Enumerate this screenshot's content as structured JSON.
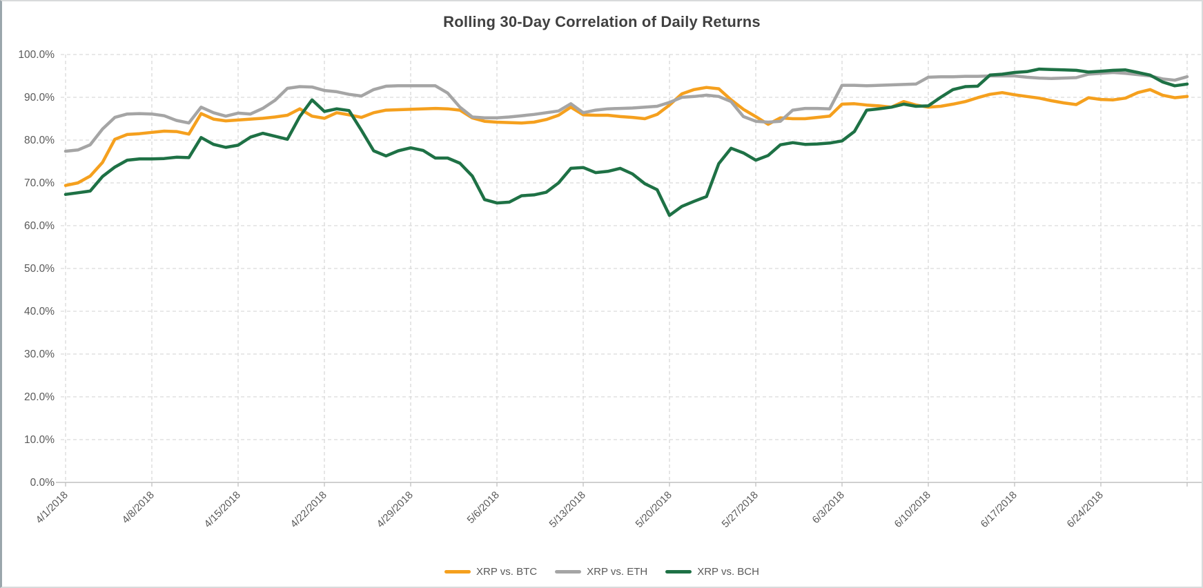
{
  "chart_data": {
    "type": "line",
    "title": "Rolling 30-Day Correlation of Daily Returns",
    "title_color": "#404040",
    "xlabel": "",
    "ylabel": "",
    "ylim": [
      0,
      100
    ],
    "y_tick_step": 10,
    "grid": true,
    "grid_style": "dashed",
    "gridline_color": "#d9d9d9",
    "axis_line_color": "#bfbfbf",
    "axis_text_color": "#595959",
    "legend_position": "bottom",
    "y_tick_labels": [
      "100.0%",
      "90.0%",
      "80.0%",
      "70.0%",
      "60.0%",
      "50.0%",
      "40.0%",
      "30.0%",
      "20.0%",
      "10.0%",
      "0.0%"
    ],
    "x_tick_labels": [
      "4/1/2018",
      "4/8/2018",
      "4/15/2018",
      "4/22/2018",
      "4/29/2018",
      "5/6/2018",
      "5/13/2018",
      "5/20/2018",
      "5/27/2018",
      "6/3/2018",
      "6/10/2018",
      "6/17/2018",
      "6/24/2018"
    ],
    "x": [
      "4/1/2018",
      "4/2/2018",
      "4/3/2018",
      "4/4/2018",
      "4/5/2018",
      "4/6/2018",
      "4/7/2018",
      "4/8/2018",
      "4/9/2018",
      "4/10/2018",
      "4/11/2018",
      "4/12/2018",
      "4/13/2018",
      "4/14/2018",
      "4/15/2018",
      "4/16/2018",
      "4/17/2018",
      "4/18/2018",
      "4/19/2018",
      "4/20/2018",
      "4/21/2018",
      "4/22/2018",
      "4/23/2018",
      "4/24/2018",
      "4/25/2018",
      "4/26/2018",
      "4/27/2018",
      "4/28/2018",
      "4/29/2018",
      "4/30/2018",
      "5/1/2018",
      "5/2/2018",
      "5/3/2018",
      "5/4/2018",
      "5/5/2018",
      "5/6/2018",
      "5/7/2018",
      "5/8/2018",
      "5/9/2018",
      "5/10/2018",
      "5/11/2018",
      "5/12/2018",
      "5/13/2018",
      "5/14/2018",
      "5/15/2018",
      "5/16/2018",
      "5/17/2018",
      "5/18/2018",
      "5/19/2018",
      "5/20/2018",
      "5/21/2018",
      "5/22/2018",
      "5/23/2018",
      "5/24/2018",
      "5/25/2018",
      "5/26/2018",
      "5/27/2018",
      "5/28/2018",
      "5/29/2018",
      "5/30/2018",
      "5/31/2018",
      "6/1/2018",
      "6/2/2018",
      "6/3/2018",
      "6/4/2018",
      "6/5/2018",
      "6/6/2018",
      "6/7/2018",
      "6/8/2018",
      "6/9/2018",
      "6/10/2018",
      "6/11/2018",
      "6/12/2018",
      "6/13/2018",
      "6/14/2018",
      "6/15/2018",
      "6/16/2018",
      "6/17/2018",
      "6/18/2018",
      "6/19/2018",
      "6/20/2018",
      "6/21/2018",
      "6/22/2018",
      "6/23/2018",
      "6/24/2018",
      "6/25/2018",
      "6/26/2018",
      "6/27/2018",
      "6/28/2018",
      "6/29/2018",
      "6/30/2018",
      "7/1/2018"
    ],
    "series": [
      {
        "name": "XRP vs. BTC",
        "color": "#f5a01e",
        "values": [
          69.4,
          70.0,
          71.6,
          74.8,
          80.2,
          81.3,
          81.5,
          81.8,
          82.1,
          82.0,
          81.4,
          86.2,
          84.9,
          84.5,
          84.7,
          84.9,
          85.1,
          85.4,
          85.8,
          87.3,
          85.6,
          85.1,
          86.4,
          85.9,
          85.3,
          86.4,
          87.0,
          87.1,
          87.2,
          87.3,
          87.4,
          87.3,
          87.0,
          85.2,
          84.4,
          84.2,
          84.1,
          84.0,
          84.2,
          84.8,
          85.8,
          87.7,
          85.9,
          85.8,
          85.8,
          85.5,
          85.3,
          85.0,
          86.0,
          88.2,
          90.8,
          91.8,
          92.3,
          92.0,
          89.4,
          87.2,
          85.5,
          83.7,
          85.2,
          85.0,
          85.0,
          85.3,
          85.6,
          88.4,
          88.5,
          88.2,
          88.0,
          87.7,
          89.0,
          88.2,
          87.7,
          87.9,
          88.4,
          89.0,
          89.9,
          90.7,
          91.1,
          90.6,
          90.2,
          89.8,
          89.2,
          88.7,
          88.3,
          89.9,
          89.5,
          89.4,
          89.8,
          91.1,
          91.8,
          90.5,
          89.9,
          90.2
        ]
      },
      {
        "name": "XRP vs. ETH",
        "color": "#a5a5a5",
        "values": [
          77.4,
          77.7,
          78.9,
          82.6,
          85.3,
          86.1,
          86.2,
          86.1,
          85.7,
          84.6,
          84.0,
          87.7,
          86.4,
          85.6,
          86.3,
          86.1,
          87.4,
          89.3,
          92.1,
          92.5,
          92.4,
          91.6,
          91.3,
          90.7,
          90.3,
          91.8,
          92.6,
          92.7,
          92.7,
          92.7,
          92.7,
          91.0,
          87.7,
          85.4,
          85.2,
          85.2,
          85.4,
          85.7,
          86.0,
          86.4,
          86.8,
          88.5,
          86.4,
          87.0,
          87.3,
          87.4,
          87.5,
          87.7,
          87.9,
          88.8,
          90.0,
          90.2,
          90.5,
          90.2,
          89.0,
          85.5,
          84.4,
          84.2,
          84.4,
          87.0,
          87.4,
          87.4,
          87.3,
          92.8,
          92.8,
          92.7,
          92.8,
          92.9,
          93.0,
          93.1,
          94.7,
          94.8,
          94.8,
          94.9,
          94.9,
          95.0,
          95.0,
          95.0,
          94.7,
          94.5,
          94.4,
          94.5,
          94.6,
          95.4,
          95.6,
          95.8,
          95.6,
          95.3,
          95.0,
          94.3,
          94.0,
          94.8
        ]
      },
      {
        "name": "XRP vs. BCH",
        "color": "#1e7145",
        "values": [
          67.3,
          67.7,
          68.1,
          71.5,
          73.7,
          75.3,
          75.6,
          75.6,
          75.7,
          76.0,
          75.9,
          80.6,
          79.0,
          78.3,
          78.8,
          80.7,
          81.6,
          80.9,
          80.2,
          85.5,
          89.4,
          86.7,
          87.3,
          86.9,
          82.3,
          77.5,
          76.3,
          77.5,
          78.2,
          77.6,
          75.8,
          75.8,
          74.6,
          71.6,
          66.1,
          65.3,
          65.5,
          67.0,
          67.2,
          67.8,
          70.0,
          73.4,
          73.6,
          72.4,
          72.7,
          73.4,
          72.1,
          69.8,
          68.4,
          62.4,
          64.5,
          65.7,
          66.8,
          74.5,
          78.1,
          77.0,
          75.3,
          76.4,
          78.9,
          79.4,
          79.0,
          79.1,
          79.3,
          79.8,
          82.0,
          87.0,
          87.3,
          87.7,
          88.4,
          87.9,
          88.0,
          90.0,
          91.8,
          92.5,
          92.6,
          95.2,
          95.4,
          95.8,
          96.0,
          96.6,
          96.5,
          96.4,
          96.3,
          95.9,
          96.1,
          96.3,
          96.4,
          95.8,
          95.2,
          93.6,
          92.7,
          93.1
        ]
      }
    ]
  }
}
